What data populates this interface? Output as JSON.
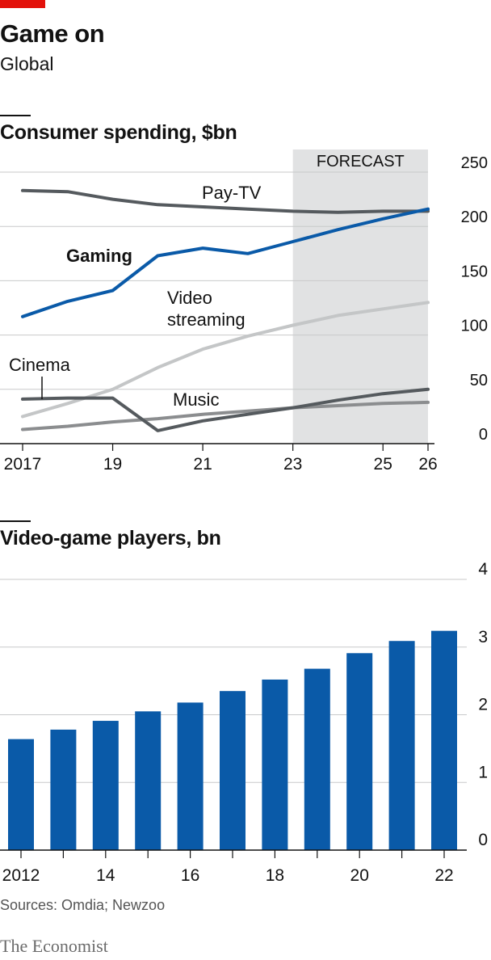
{
  "header": {
    "title": "Game on",
    "subtitle": "Global"
  },
  "chart_data": [
    {
      "type": "line",
      "title": "Consumer spending, $bn",
      "xlabel": "",
      "ylabel": "",
      "xlim": [
        2017,
        2026
      ],
      "ylim": [
        0,
        250
      ],
      "y_ticks": [
        0,
        50,
        100,
        150,
        200,
        250
      ],
      "x_ticks": [
        2017,
        2019,
        2021,
        2023,
        2025,
        2026
      ],
      "x_tick_labels": [
        "2017",
        "19",
        "21",
        "23",
        "25",
        "26"
      ],
      "forecast_label": "FORECAST",
      "forecast_range": [
        2023,
        2026
      ],
      "grid": true,
      "y_axis_side": "right",
      "x": [
        2017,
        2018,
        2019,
        2020,
        2021,
        2022,
        2023,
        2024,
        2025,
        2026
      ],
      "series": [
        {
          "name": "Pay-TV",
          "color": "#555a5e",
          "values": [
            233,
            232,
            225,
            220,
            218,
            216,
            214,
            213,
            214,
            214
          ]
        },
        {
          "name": "Gaming",
          "color": "#0a5aa8",
          "values": [
            117,
            131,
            141,
            173,
            180,
            175,
            186,
            197,
            207,
            216
          ]
        },
        {
          "name": "Video streaming",
          "color": "#c4c6c7",
          "values": [
            25,
            37,
            50,
            70,
            87,
            99,
            109,
            118,
            124,
            130
          ]
        },
        {
          "name": "Cinema",
          "color": "#555a5e",
          "values": [
            41,
            42,
            42,
            12,
            21,
            27,
            33,
            40,
            46,
            50
          ]
        },
        {
          "name": "Music",
          "color": "#8b8d8f",
          "values": [
            13,
            16,
            20,
            23,
            27,
            30,
            33,
            35,
            37,
            38
          ]
        }
      ],
      "annotations": [
        {
          "text": "Pay-TV"
        },
        {
          "text": "Gaming"
        },
        {
          "text": "Video"
        },
        {
          "text": "streaming"
        },
        {
          "text": "Cinema"
        },
        {
          "text": "Music"
        }
      ]
    },
    {
      "type": "bar",
      "title": "Video-game players, bn",
      "xlabel": "",
      "ylabel": "",
      "ylim": [
        0,
        4
      ],
      "y_ticks": [
        0,
        1,
        2,
        3,
        4
      ],
      "grid": true,
      "y_axis_side": "right",
      "color": "#0a5aa8",
      "categories": [
        "2012",
        "2013",
        "2014",
        "2015",
        "2016",
        "2017",
        "2018",
        "2019",
        "2020",
        "2021",
        "2022"
      ],
      "x_tick_labels": [
        "2012",
        "14",
        "16",
        "18",
        "20",
        "22"
      ],
      "values": [
        1.64,
        1.78,
        1.91,
        2.05,
        2.18,
        2.35,
        2.52,
        2.68,
        2.91,
        3.09,
        3.24
      ]
    }
  ],
  "footer": {
    "sources": "Sources: Omdia; Newzoo",
    "brand": "The Economist"
  }
}
